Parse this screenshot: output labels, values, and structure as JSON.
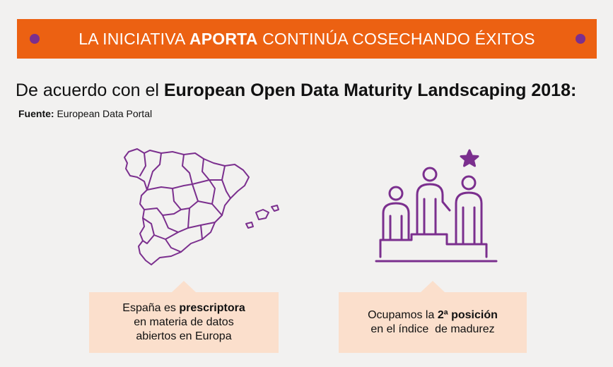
{
  "banner": {
    "title_pre": "LA INICIATIVA ",
    "title_bold": "APORTA",
    "title_post": " CONTINÚA COSECHANDO ÉXITOS",
    "color": "#ec6112",
    "dot_color": "#7b2f8e"
  },
  "heading": {
    "pre": "De acuerdo con el ",
    "bold": "European Open Data Maturity Landscaping 2018:"
  },
  "source": {
    "label": "Fuente:",
    "value": " European Data Portal"
  },
  "icons": {
    "map": "spain-map-icon",
    "podium": "podium-icon",
    "star": "star-icon"
  },
  "cards": [
    {
      "line1_pre": "España es ",
      "line1_bold": "prescriptora",
      "line2": "en materia de datos",
      "line3": "abiertos en Europa"
    },
    {
      "line1_pre": "Ocupamos la ",
      "line1_bold": "2ª posición",
      "line2": "en el índice  de madurez"
    }
  ],
  "colors": {
    "accent": "#7b2f8e",
    "card_bg": "#fbdfcc",
    "background": "#f2f1f0"
  }
}
